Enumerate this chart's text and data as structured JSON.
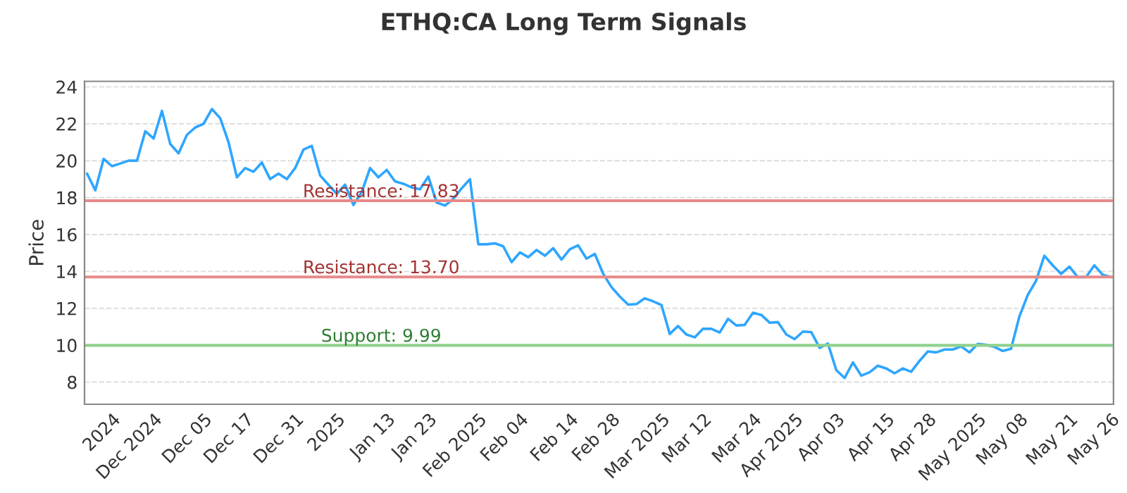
{
  "chart_data": {
    "type": "line",
    "title": "ETHQ:CA Long Term Signals",
    "ylabel": "Price",
    "categories": [
      null,
      null,
      null,
      "2024",
      null,
      null,
      null,
      null,
      "Dec 2024",
      null,
      null,
      null,
      null,
      null,
      "Dec 05",
      null,
      null,
      null,
      null,
      "Dec 17",
      null,
      null,
      null,
      null,
      null,
      "Dec 31",
      null,
      null,
      null,
      null,
      "2025",
      null,
      null,
      null,
      null,
      null,
      "Jan 13",
      null,
      null,
      null,
      null,
      "Jan 23",
      null,
      null,
      null,
      null,
      null,
      "Feb 2025",
      null,
      null,
      null,
      null,
      "Feb 04",
      null,
      null,
      null,
      null,
      null,
      "Feb 14",
      null,
      null,
      null,
      null,
      "Feb 28",
      null,
      null,
      null,
      null,
      null,
      "Mar 2025",
      null,
      null,
      null,
      null,
      "Mar 12",
      null,
      null,
      null,
      null,
      null,
      "Mar 24",
      null,
      null,
      null,
      null,
      "Apr 2025",
      null,
      null,
      null,
      null,
      "Apr 03",
      null,
      null,
      null,
      null,
      null,
      "Apr 15",
      null,
      null,
      null,
      null,
      "Apr 28",
      null,
      null,
      null,
      null,
      null,
      "May 2025",
      null,
      null,
      null,
      null,
      "May 08",
      null,
      null,
      null,
      null,
      null,
      "May 21",
      null,
      null,
      null,
      null,
      "May 26"
    ],
    "series": [
      {
        "color": "#2ea6ff",
        "values": [
          19.3,
          18.4,
          20.1,
          19.7,
          19.85,
          20.0,
          20.0,
          21.6,
          21.2,
          22.7,
          20.9,
          20.4,
          21.4,
          21.8,
          22.0,
          22.8,
          22.3,
          21.0,
          19.1,
          19.6,
          19.4,
          19.9,
          19.0,
          19.3,
          19.0,
          19.6,
          20.6,
          20.8,
          19.2,
          18.7,
          18.2,
          18.7,
          17.6,
          18.3,
          19.6,
          19.1,
          19.5,
          18.88,
          18.75,
          18.55,
          18.45,
          19.14,
          17.73,
          17.57,
          17.93,
          18.5,
          19.0,
          15.47,
          15.47,
          15.52,
          15.36,
          14.5,
          15.03,
          14.77,
          15.16,
          14.85,
          15.26,
          14.64,
          15.2,
          15.41,
          14.69,
          14.95,
          13.87,
          13.15,
          12.64,
          12.2,
          12.23,
          12.54,
          12.38,
          12.18,
          10.61,
          11.04,
          10.58,
          10.43,
          10.89,
          10.89,
          10.69,
          11.43,
          11.07,
          11.1,
          11.76,
          11.64,
          11.22,
          11.25,
          10.58,
          10.33,
          10.74,
          10.71,
          9.86,
          10.09,
          8.65,
          8.22,
          9.07,
          8.35,
          8.53,
          8.89,
          8.74,
          8.48,
          8.74,
          8.56,
          9.15,
          9.66,
          9.61,
          9.77,
          9.77,
          9.94,
          9.61,
          10.07,
          10.02,
          9.91,
          9.69,
          9.81,
          11.56,
          12.72,
          13.49,
          14.85,
          14.33,
          13.87,
          14.26,
          13.69,
          13.69,
          14.33,
          13.82,
          13.69
        ]
      }
    ],
    "ylim": [
      6.8,
      24.3
    ],
    "yticks": [
      8,
      10,
      12,
      14,
      16,
      18,
      20,
      22,
      24
    ],
    "grid": "y",
    "marker": "none",
    "line_style": "solid",
    "ref_lines": [
      {
        "axis": "y",
        "value": 17.83,
        "label": "Resistance: 17.83",
        "color": "#e88a8a"
      },
      {
        "axis": "y",
        "value": 13.7,
        "label": "Resistance: 13.70",
        "color": "#e88a8a"
      },
      {
        "axis": "y",
        "value": 9.99,
        "label": "Support: 9.99",
        "color": "#8fd18f"
      }
    ]
  }
}
